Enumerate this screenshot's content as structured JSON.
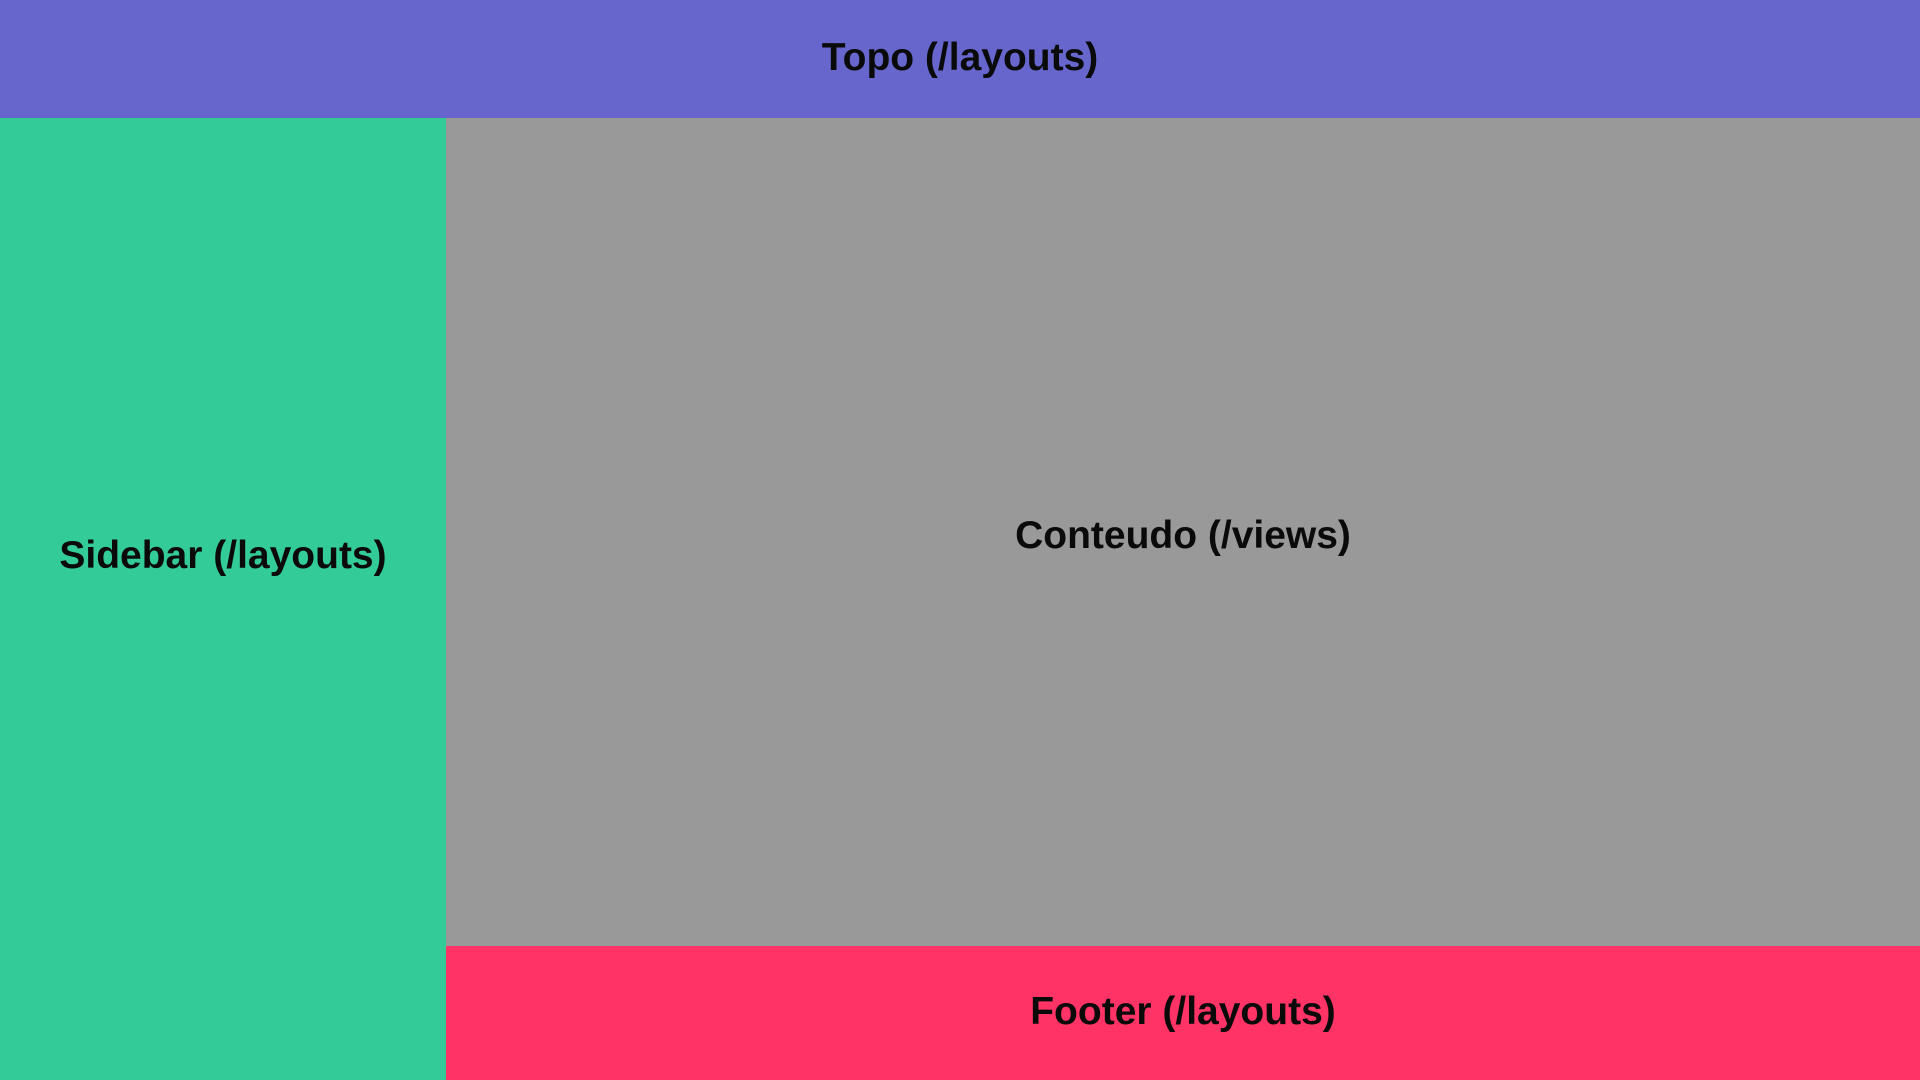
{
  "regions": {
    "topo": {
      "label": "Topo (/layouts)",
      "color": "#6666cc"
    },
    "sidebar": {
      "label": "Sidebar (/layouts)",
      "color": "#33cc99"
    },
    "conteudo": {
      "label": "Conteudo (/views)",
      "color": "#999999"
    },
    "footer": {
      "label": "Footer (/layouts)",
      "color": "#ff3366"
    }
  }
}
